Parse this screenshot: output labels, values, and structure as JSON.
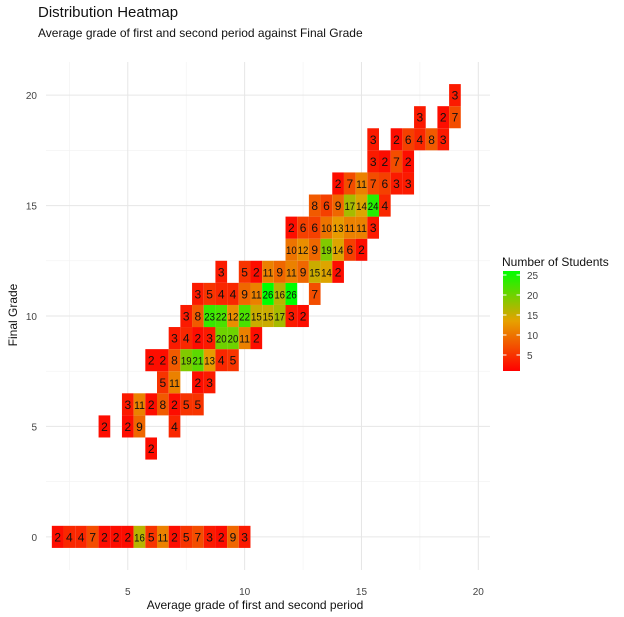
{
  "chart_data": {
    "type": "heatmap",
    "title": "Distribution Heatmap",
    "subtitle": "Average grade of first and second period against Final Grade",
    "xlabel": "Average grade of first and second period",
    "ylabel": "Final Grade",
    "xlim": [
      1.5,
      20.5
    ],
    "ylim": [
      -1.5,
      21.5
    ],
    "x_ticks": [
      5,
      10,
      15,
      20
    ],
    "y_ticks": [
      0,
      5,
      10,
      15,
      20
    ],
    "grid": true,
    "legend": {
      "title": "Number of Students",
      "min": 1,
      "max": 26,
      "ticks": [
        5,
        10,
        15,
        20,
        25
      ],
      "placement": "right"
    },
    "colors": {
      "low": "#ff0000",
      "mid": "#e6a100",
      "high": "#00ff00"
    },
    "cells": [
      {
        "x": 2,
        "y": 0,
        "value": 2
      },
      {
        "x": 2.5,
        "y": 0,
        "value": 4
      },
      {
        "x": 3,
        "y": 0,
        "value": 4
      },
      {
        "x": 3.5,
        "y": 0,
        "value": 7
      },
      {
        "x": 4,
        "y": 0,
        "value": 2
      },
      {
        "x": 4.5,
        "y": 0,
        "value": 2
      },
      {
        "x": 5,
        "y": 0,
        "value": 2
      },
      {
        "x": 5.5,
        "y": 0,
        "value": 16
      },
      {
        "x": 6,
        "y": 0,
        "value": 5
      },
      {
        "x": 6.5,
        "y": 0,
        "value": 11
      },
      {
        "x": 7,
        "y": 0,
        "value": 2
      },
      {
        "x": 7.5,
        "y": 0,
        "value": 5
      },
      {
        "x": 8,
        "y": 0,
        "value": 7
      },
      {
        "x": 8.5,
        "y": 0,
        "value": 3
      },
      {
        "x": 9,
        "y": 0,
        "value": 2
      },
      {
        "x": 9.5,
        "y": 0,
        "value": 9
      },
      {
        "x": 10,
        "y": 0,
        "value": 3
      },
      {
        "x": 6,
        "y": 4,
        "value": 2
      },
      {
        "x": 4,
        "y": 5,
        "value": 2
      },
      {
        "x": 5,
        "y": 5,
        "value": 2
      },
      {
        "x": 5.5,
        "y": 5,
        "value": 9
      },
      {
        "x": 7,
        "y": 5,
        "value": 4
      },
      {
        "x": 5,
        "y": 6,
        "value": 3
      },
      {
        "x": 5.5,
        "y": 6,
        "value": 11
      },
      {
        "x": 6,
        "y": 6,
        "value": 2
      },
      {
        "x": 6.5,
        "y": 6,
        "value": 8
      },
      {
        "x": 7,
        "y": 6,
        "value": 2
      },
      {
        "x": 7.5,
        "y": 6,
        "value": 5
      },
      {
        "x": 8,
        "y": 6,
        "value": 5
      },
      {
        "x": 6.5,
        "y": 7,
        "value": 5
      },
      {
        "x": 7,
        "y": 7,
        "value": 11
      },
      {
        "x": 8,
        "y": 7,
        "value": 2
      },
      {
        "x": 8.5,
        "y": 7,
        "value": 3
      },
      {
        "x": 6,
        "y": 8,
        "value": 2
      },
      {
        "x": 6.5,
        "y": 8,
        "value": 2
      },
      {
        "x": 7,
        "y": 8,
        "value": 8
      },
      {
        "x": 7.5,
        "y": 8,
        "value": 19
      },
      {
        "x": 8,
        "y": 8,
        "value": 21
      },
      {
        "x": 8.5,
        "y": 8,
        "value": 13
      },
      {
        "x": 9,
        "y": 8,
        "value": 4
      },
      {
        "x": 9.5,
        "y": 8,
        "value": 5
      },
      {
        "x": 7,
        "y": 9,
        "value": 3
      },
      {
        "x": 7.5,
        "y": 9,
        "value": 4
      },
      {
        "x": 8,
        "y": 9,
        "value": 2
      },
      {
        "x": 8.5,
        "y": 9,
        "value": 3
      },
      {
        "x": 9,
        "y": 9,
        "value": 20
      },
      {
        "x": 9.5,
        "y": 9,
        "value": 20
      },
      {
        "x": 10,
        "y": 9,
        "value": 11
      },
      {
        "x": 10.5,
        "y": 9,
        "value": 2
      },
      {
        "x": 7.5,
        "y": 10,
        "value": 3
      },
      {
        "x": 8,
        "y": 10,
        "value": 8
      },
      {
        "x": 8.5,
        "y": 10,
        "value": 23
      },
      {
        "x": 9,
        "y": 10,
        "value": 22
      },
      {
        "x": 9.5,
        "y": 10,
        "value": 12
      },
      {
        "x": 10,
        "y": 10,
        "value": 22
      },
      {
        "x": 10.5,
        "y": 10,
        "value": 15
      },
      {
        "x": 11,
        "y": 10,
        "value": 15
      },
      {
        "x": 11.5,
        "y": 10,
        "value": 17
      },
      {
        "x": 12,
        "y": 10,
        "value": 3
      },
      {
        "x": 12.5,
        "y": 10,
        "value": 2
      },
      {
        "x": 8,
        "y": 11,
        "value": 3
      },
      {
        "x": 8.5,
        "y": 11,
        "value": 5
      },
      {
        "x": 9,
        "y": 11,
        "value": 4
      },
      {
        "x": 9.5,
        "y": 11,
        "value": 4
      },
      {
        "x": 10,
        "y": 11,
        "value": 9
      },
      {
        "x": 10.5,
        "y": 11,
        "value": 11
      },
      {
        "x": 11,
        "y": 11,
        "value": 26
      },
      {
        "x": 11.5,
        "y": 11,
        "value": 16
      },
      {
        "x": 12,
        "y": 11,
        "value": 26
      },
      {
        "x": 13,
        "y": 11,
        "value": 7
      },
      {
        "x": 9,
        "y": 12,
        "value": 3
      },
      {
        "x": 10,
        "y": 12,
        "value": 5
      },
      {
        "x": 10.5,
        "y": 12,
        "value": 2
      },
      {
        "x": 11,
        "y": 12,
        "value": 11
      },
      {
        "x": 11.5,
        "y": 12,
        "value": 9
      },
      {
        "x": 12,
        "y": 12,
        "value": 11
      },
      {
        "x": 12.5,
        "y": 12,
        "value": 9
      },
      {
        "x": 13,
        "y": 12,
        "value": 15
      },
      {
        "x": 13.5,
        "y": 12,
        "value": 14
      },
      {
        "x": 14,
        "y": 12,
        "value": 2
      },
      {
        "x": 12,
        "y": 13,
        "value": 10
      },
      {
        "x": 12.5,
        "y": 13,
        "value": 12
      },
      {
        "x": 13,
        "y": 13,
        "value": 9
      },
      {
        "x": 13.5,
        "y": 13,
        "value": 19
      },
      {
        "x": 14,
        "y": 13,
        "value": 14
      },
      {
        "x": 14.5,
        "y": 13,
        "value": 6
      },
      {
        "x": 15,
        "y": 13,
        "value": 2
      },
      {
        "x": 12,
        "y": 14,
        "value": 2
      },
      {
        "x": 12.5,
        "y": 14,
        "value": 6
      },
      {
        "x": 13,
        "y": 14,
        "value": 6
      },
      {
        "x": 13.5,
        "y": 14,
        "value": 10
      },
      {
        "x": 14,
        "y": 14,
        "value": 13
      },
      {
        "x": 14.5,
        "y": 14,
        "value": 11
      },
      {
        "x": 15,
        "y": 14,
        "value": 11
      },
      {
        "x": 15.5,
        "y": 14,
        "value": 3
      },
      {
        "x": 13,
        "y": 15,
        "value": 8
      },
      {
        "x": 13.5,
        "y": 15,
        "value": 6
      },
      {
        "x": 14,
        "y": 15,
        "value": 9
      },
      {
        "x": 14.5,
        "y": 15,
        "value": 17
      },
      {
        "x": 15,
        "y": 15,
        "value": 14
      },
      {
        "x": 15.5,
        "y": 15,
        "value": 24
      },
      {
        "x": 16,
        "y": 15,
        "value": 4
      },
      {
        "x": 14,
        "y": 16,
        "value": 2
      },
      {
        "x": 14.5,
        "y": 16,
        "value": 7
      },
      {
        "x": 15,
        "y": 16,
        "value": 11
      },
      {
        "x": 15.5,
        "y": 16,
        "value": 7
      },
      {
        "x": 16,
        "y": 16,
        "value": 6
      },
      {
        "x": 16.5,
        "y": 16,
        "value": 3
      },
      {
        "x": 17,
        "y": 16,
        "value": 3
      },
      {
        "x": 15.5,
        "y": 17,
        "value": 3
      },
      {
        "x": 16,
        "y": 17,
        "value": 2
      },
      {
        "x": 16.5,
        "y": 17,
        "value": 7
      },
      {
        "x": 17,
        "y": 17,
        "value": 2
      },
      {
        "x": 15.5,
        "y": 18,
        "value": 3
      },
      {
        "x": 16.5,
        "y": 18,
        "value": 2
      },
      {
        "x": 17,
        "y": 18,
        "value": 6
      },
      {
        "x": 17.5,
        "y": 18,
        "value": 4
      },
      {
        "x": 18,
        "y": 18,
        "value": 8
      },
      {
        "x": 18.5,
        "y": 18,
        "value": 3
      },
      {
        "x": 17.5,
        "y": 19,
        "value": 3
      },
      {
        "x": 18.5,
        "y": 19,
        "value": 2
      },
      {
        "x": 19,
        "y": 19,
        "value": 7
      },
      {
        "x": 19,
        "y": 20,
        "value": 3
      }
    ]
  }
}
